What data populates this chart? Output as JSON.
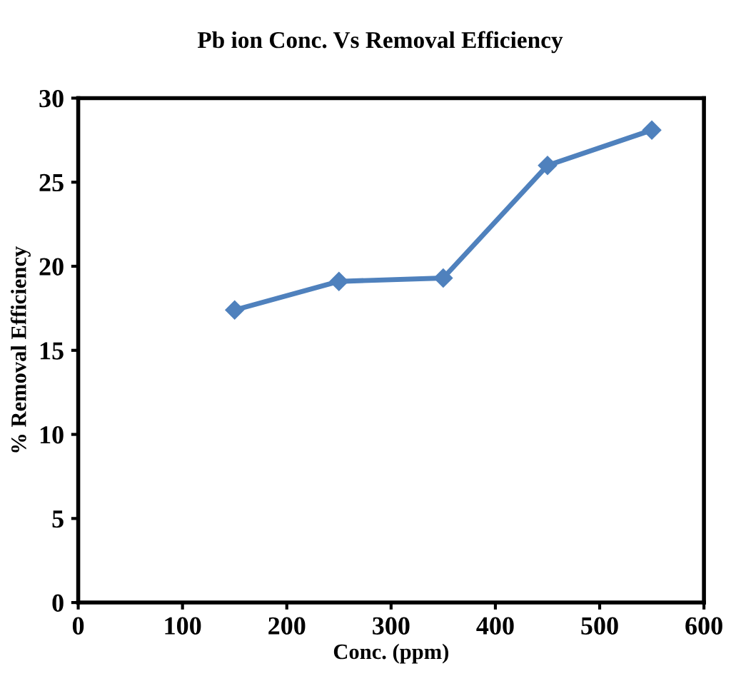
{
  "chart_data": {
    "type": "line",
    "title": "Pb ion Conc. Vs Removal Efficiency",
    "xlabel": "Conc. (ppm)",
    "ylabel": "% Removal Efficiency",
    "x": [
      150,
      250,
      350,
      450,
      550
    ],
    "series": [
      {
        "color": "#4f81bd",
        "values": [
          17.4,
          19.1,
          19.3,
          26.0,
          28.1
        ]
      }
    ],
    "xlim": [
      0,
      600
    ],
    "xticks": [
      0,
      100,
      200,
      300,
      400,
      500,
      600
    ],
    "ylim": [
      0,
      30
    ],
    "yticks": [
      0,
      5,
      10,
      15,
      20,
      25,
      30
    ],
    "grid": false,
    "legend": false,
    "marker": "diamond",
    "line_style": "solid"
  }
}
